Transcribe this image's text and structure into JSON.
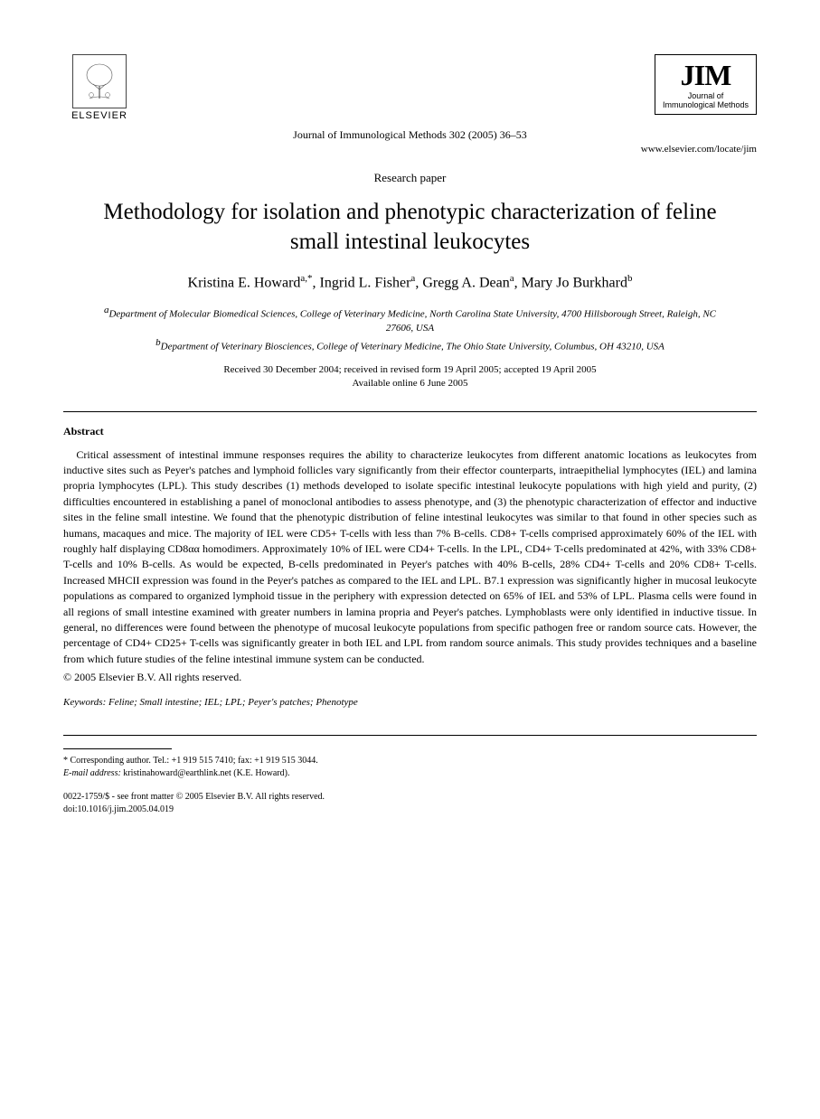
{
  "header": {
    "publisher_label": "ELSEVIER",
    "publisher_tree_alt": "tree",
    "journal_abbrev": "JIM",
    "journal_full_line1": "Journal of",
    "journal_full_line2": "Immunological Methods",
    "journal_ref": "Journal of Immunological Methods 302 (2005) 36–53",
    "journal_url": "www.elsevier.com/locate/jim"
  },
  "paper_type": "Research paper",
  "title": "Methodology for isolation and phenotypic characterization of feline small intestinal leukocytes",
  "authors_html": "Kristina E. Howard<span class='sup'>a,*</span>, Ingrid L. Fisher<span class='sup'>a</span>, Gregg A. Dean<span class='sup'>a</span>, Mary Jo Burkhard<span class='sup'>b</span>",
  "affiliations": {
    "a": "Department of Molecular Biomedical Sciences, College of Veterinary Medicine, North Carolina State University, 4700 Hillsborough Street, Raleigh, NC 27606, USA",
    "b": "Department of Veterinary Biosciences, College of Veterinary Medicine, The Ohio State University, Columbus, OH 43210, USA"
  },
  "dates": {
    "line1": "Received 30 December 2004; received in revised form 19 April 2005; accepted 19 April 2005",
    "line2": "Available online 6 June 2005"
  },
  "abstract": {
    "heading": "Abstract",
    "body": "Critical assessment of intestinal immune responses requires the ability to characterize leukocytes from different anatomic locations as leukocytes from inductive sites such as Peyer's patches and lymphoid follicles vary significantly from their effector counterparts, intraepithelial lymphocytes (IEL) and lamina propria lymphocytes (LPL). This study describes (1) methods developed to isolate specific intestinal leukocyte populations with high yield and purity, (2) difficulties encountered in establishing a panel of monoclonal antibodies to assess phenotype, and (3) the phenotypic characterization of effector and inductive sites in the feline small intestine. We found that the phenotypic distribution of feline intestinal leukocytes was similar to that found in other species such as humans, macaques and mice. The majority of IEL were CD5+ T-cells with less than 7% B-cells. CD8+ T-cells comprised approximately 60% of the IEL with roughly half displaying CD8αα homodimers. Approximately 10% of IEL were CD4+ T-cells. In the LPL, CD4+ T-cells predominated at 42%, with 33% CD8+ T-cells and 10% B-cells. As would be expected, B-cells predominated in Peyer's patches with 40% B-cells, 28% CD4+ T-cells and 20% CD8+ T-cells. Increased MHCII expression was found in the Peyer's patches as compared to the IEL and LPL. B7.1 expression was significantly higher in mucosal leukocyte populations as compared to organized lymphoid tissue in the periphery with expression detected on 65% of IEL and 53% of LPL. Plasma cells were found in all regions of small intestine examined with greater numbers in lamina propria and Peyer's patches. Lymphoblasts were only identified in inductive tissue. In general, no differences were found between the phenotype of mucosal leukocyte populations from specific pathogen free or random source cats. However, the percentage of CD4+ CD25+ T-cells was significantly greater in both IEL and LPL from random source animals. This study provides techniques and a baseline from which future studies of the feline intestinal immune system can be conducted.",
    "copyright": "© 2005 Elsevier B.V. All rights reserved."
  },
  "keywords": {
    "label": "Keywords:",
    "list": "Feline; Small intestine; IEL; LPL; Peyer's patches; Phenotype"
  },
  "footnotes": {
    "corresponding": "* Corresponding author. Tel.: +1 919 515 7410; fax: +1 919 515 3044.",
    "email_label": "E-mail address:",
    "email_value": "kristinahoward@earthlink.net (K.E. Howard)."
  },
  "footer": {
    "issn_line": "0022-1759/$ - see front matter © 2005 Elsevier B.V. All rights reserved.",
    "doi_line": "doi:10.1016/j.jim.2005.04.019"
  }
}
